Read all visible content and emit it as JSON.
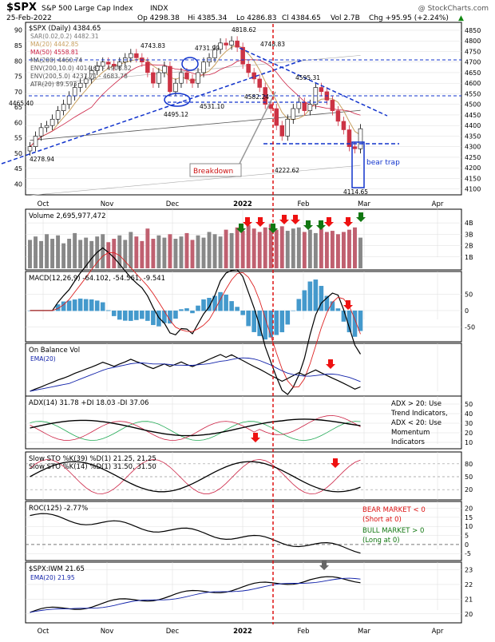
{
  "header": {
    "symbol": "$SPX",
    "name": "S&P 500 Large Cap Index",
    "exchange": "INDX",
    "watermark": "@ StockCharts.com",
    "date": "25-Feb-2022",
    "open": "Op 4298.38",
    "high": "Hi 4385.34",
    "low": "Lo 4286.83",
    "close": "Cl 4384.65",
    "volume": "Vol 2.7B",
    "change": "Chg +95.95 (+2.24%)",
    "change_arrow": "▲"
  },
  "colors": {
    "up_candle": "#ffffff",
    "down_candle": "#cc3344",
    "ma20": "#c8a060",
    "ma50": "#cc2244",
    "ma200": "#555555",
    "env": "#aaaaaa",
    "trend_line": "#1133cc",
    "red_arrow": "#ee1111",
    "green_arrow": "#117711",
    "gray_arrow": "#666666",
    "volume_up": "#888888",
    "volume_down": "#c06070",
    "macd_hist": "#4499cc",
    "bg": "#ffffff",
    "grid": "#dddddd"
  },
  "chart_data": [
    {
      "type": "candlestick",
      "panel": "price",
      "title": "$SPX (Daily) 4384.65",
      "legend": [
        "$SPX (Daily) 4384.65",
        "SAR(0.02,0.2) 4482.31",
        "MA(20) 4442.85",
        "MA(50) 4558.81",
        "MA(200) 4460.74",
        "ENV(200,10.0) 4014.67 - 4906.82",
        "ENV(200,5.0) 4237.71 - 4683.78",
        "ATR(20) 89.593"
      ],
      "y_ticks_right": [
        4100,
        4150,
        4200,
        4250,
        4300,
        4350,
        4400,
        4450,
        4500,
        4550,
        4600,
        4650,
        4700,
        4750,
        4800,
        4850
      ],
      "y_ticks_left": [
        40,
        45,
        50,
        55,
        60,
        65,
        70,
        75,
        80,
        85,
        90
      ],
      "ylim": [
        4080,
        4880
      ],
      "x_labels": [
        "Oct",
        "Nov",
        "Dec",
        "2022",
        "Feb",
        "Mar",
        "Apr"
      ],
      "price_labels": [
        "4278.94",
        "4465.40",
        "4743.83",
        "4731.99",
        "4818.62",
        "4748.83",
        "4495.12",
        "4531.10",
        "4582.24",
        "4595.31",
        "4222.62",
        "4114.65"
      ],
      "annotations": [
        "Breakdown",
        "bear trap"
      ],
      "approx_closes": [
        4300,
        4350,
        4390,
        4400,
        4430,
        4470,
        4500,
        4540,
        4580,
        4600,
        4620,
        4660,
        4680,
        4700,
        4690,
        4680,
        4700,
        4720,
        4740,
        4720,
        4700,
        4650,
        4600,
        4650,
        4680,
        4560,
        4600,
        4650,
        4620,
        4600,
        4650,
        4700,
        4720,
        4760,
        4790,
        4780,
        4800,
        4770,
        4690,
        4650,
        4620,
        4580,
        4500,
        4480,
        4400,
        4350,
        4430,
        4480,
        4510,
        4470,
        4500,
        4580,
        4560,
        4520,
        4470,
        4420,
        4380,
        4300,
        4290,
        4385
      ]
    },
    {
      "type": "bar",
      "panel": "volume",
      "title": "Volume 2,695,977,472",
      "y_ticks": [
        "1B",
        "2B",
        "3B",
        "4B"
      ],
      "ylim": [
        0,
        4.5
      ],
      "values": [
        2.5,
        2.8,
        2.4,
        3.0,
        2.6,
        2.9,
        2.2,
        2.6,
        3.1,
        2.5,
        2.7,
        2.4,
        2.8,
        3.0,
        2.3,
        2.6,
        2.9,
        2.5,
        3.2,
        2.8,
        2.4,
        3.5,
        2.6,
        2.9,
        2.7,
        3.0,
        2.6,
        2.8,
        3.1,
        2.5,
        2.9,
        2.7,
        3.2,
        3.0,
        2.8,
        3.4,
        3.1,
        3.6,
        3.3,
        3.8,
        3.5,
        3.2,
        3.6,
        3.9,
        3.4,
        3.7,
        3.3,
        3.5,
        3.6,
        3.2,
        3.4,
        3.1,
        3.5,
        3.2,
        3.3,
        3.0,
        3.2,
        3.4,
        3.6,
        2.7
      ]
    },
    {
      "type": "line",
      "panel": "macd",
      "title": "MACD(12,26,9) -64.102, -54.561, -9.541",
      "y_ticks": [
        "50",
        "0",
        "-50"
      ],
      "ylim": [
        -90,
        80
      ]
    },
    {
      "type": "line",
      "panel": "obv",
      "title": "On Balance Vol",
      "legend": [
        "EMA(20)"
      ]
    },
    {
      "type": "line",
      "panel": "adx",
      "title": "ADX(14) 31.78 +DI 18.03 -DI 37.06",
      "y_ticks": [
        "50",
        "40",
        "30",
        "20",
        "10"
      ],
      "ylim": [
        5,
        55
      ],
      "note": [
        "ADX > 20: Use",
        "Trend Indicators,",
        "ADX < 20: Use",
        "Momentum",
        "Indicators"
      ]
    },
    {
      "type": "line",
      "panel": "sto",
      "title": "Slow STO %K(39) %D(1) 21.25, 21.25",
      "title2": "Slow STO %K(14) %D(1) 31.50, 31.50",
      "y_ticks": [
        "80",
        "50",
        "20"
      ],
      "ylim": [
        0,
        100
      ]
    },
    {
      "type": "line",
      "panel": "roc",
      "title": "ROC(125) -2.77%",
      "y_ticks": [
        "20",
        "15",
        "10",
        "5",
        "0",
        "-5"
      ],
      "ylim": [
        -8,
        22
      ],
      "note_bear": [
        "BEAR MARKET < 0",
        "(Short at 0)"
      ],
      "note_bull": [
        "BULL MARKET > 0",
        "(Long at 0)"
      ]
    },
    {
      "type": "line",
      "panel": "ratio",
      "title": "$SPX:IWM 21.65",
      "legend": [
        "EMA(20) 21.95"
      ],
      "y_ticks": [
        "23",
        "22",
        "21",
        "20"
      ],
      "ylim": [
        19.5,
        23.3
      ]
    }
  ]
}
